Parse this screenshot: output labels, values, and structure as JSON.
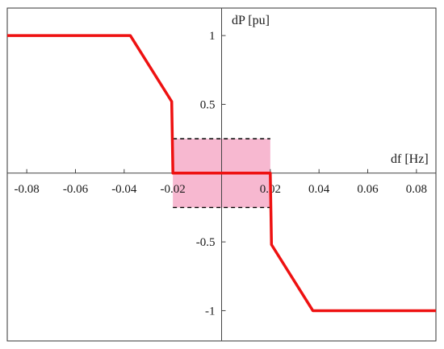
{
  "chart_data": {
    "type": "line",
    "title": "",
    "xlabel": "df [Hz]",
    "ylabel": "dP [pu]",
    "xlim": [
      -0.088,
      0.088
    ],
    "ylim": [
      -1.22,
      1.2
    ],
    "grid": false,
    "x_ticks": [
      -0.08,
      -0.06,
      -0.04,
      -0.02,
      0.02,
      0.04,
      0.06,
      0.08
    ],
    "y_ticks": [
      -1,
      -0.5,
      0.5,
      1
    ],
    "series": [
      {
        "color": "#ee1111",
        "x": [
          -0.088,
          -0.0375,
          -0.0205,
          -0.02,
          0.02,
          0.0205,
          0.0375,
          0.088
        ],
        "y": [
          1,
          1,
          0.52,
          0,
          0,
          -0.52,
          -1,
          -1
        ]
      }
    ],
    "deadband": {
      "x": [
        -0.02,
        0.02
      ],
      "y": [
        -0.25,
        0.25
      ],
      "fill": "#f7b8d0",
      "border": "#000000"
    }
  }
}
